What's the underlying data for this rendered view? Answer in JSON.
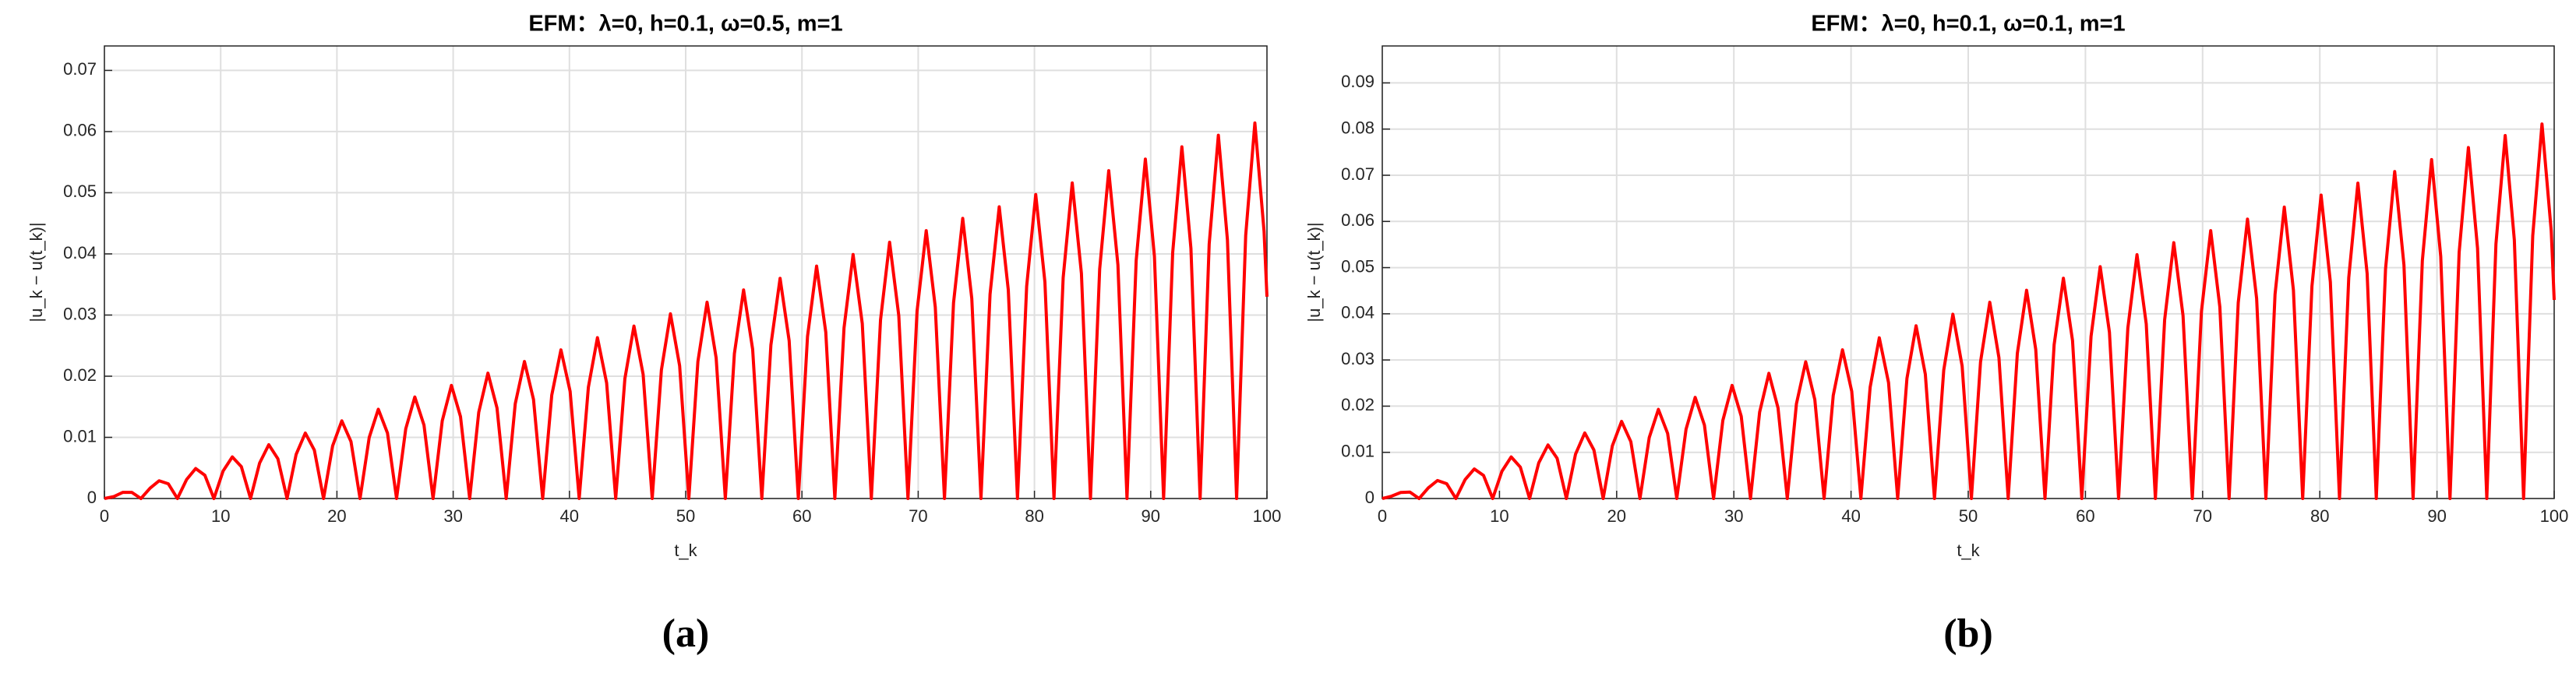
{
  "chart_data": [
    {
      "type": "line",
      "title": "EFM：λ=0, h=0.1, ω=0.5, m=1",
      "xlabel": "t_k",
      "ylabel": "|u_k − u(t_k)|",
      "caption": "(a)",
      "color": "#ff0000",
      "grid": true,
      "xlim": [
        0,
        100
      ],
      "ylim": [
        0,
        0.074
      ],
      "xticks": [
        0,
        10,
        20,
        30,
        40,
        50,
        60,
        70,
        80,
        90,
        100
      ],
      "yticks": [
        0,
        0.01,
        0.02,
        0.03,
        0.04,
        0.05,
        0.06,
        0.07
      ],
      "x": [
        0,
        0.79,
        1.57,
        2.36,
        3.14,
        3.93,
        4.71,
        5.5,
        6.28,
        7.07,
        7.85,
        8.64,
        9.42,
        10.21,
        11,
        11.78,
        12.57,
        13.35,
        14.14,
        14.92,
        15.71,
        16.49,
        17.28,
        18.06,
        18.85,
        19.63,
        20.42,
        21.21,
        21.99,
        22.78,
        23.56,
        24.35,
        25.13,
        25.92,
        26.7,
        27.49,
        28.27,
        29.06,
        29.85,
        30.63,
        31.42,
        32.2,
        32.99,
        33.77,
        34.56,
        35.34,
        36.13,
        36.91,
        37.7,
        38.48,
        39.27,
        40.06,
        40.84,
        41.63,
        42.41,
        43.2,
        43.98,
        44.77,
        45.55,
        46.34,
        47.12,
        47.91,
        48.69,
        49.48,
        50.27,
        51.05,
        51.84,
        52.62,
        53.41,
        54.19,
        54.98,
        55.76,
        56.55,
        57.33,
        58.12,
        58.9,
        59.69,
        60.48,
        61.26,
        62.05,
        62.83,
        63.62,
        64.4,
        65.19,
        65.97,
        66.76,
        67.54,
        68.33,
        69.12,
        69.9,
        70.69,
        71.47,
        72.26,
        73.04,
        73.83,
        74.61,
        75.4,
        76.18,
        76.97,
        77.75,
        78.54,
        79.33,
        80.11,
        80.9,
        81.68,
        82.47,
        83.25,
        84.04,
        84.82,
        85.61,
        86.39,
        87.18,
        87.96,
        88.75,
        89.54,
        90.32,
        91.11,
        91.89,
        92.68,
        93.46,
        94.25,
        95.03,
        95.82,
        96.6,
        97.39,
        98.17,
        98.96,
        99.75,
        100
      ],
      "values": [
        0,
        0.0003,
        0.001,
        0.001,
        0,
        0.0017,
        0.0029,
        0.0024,
        0,
        0.0031,
        0.0049,
        0.0038,
        0,
        0.0045,
        0.0068,
        0.0052,
        0,
        0.0058,
        0.0088,
        0.0065,
        0,
        0.0072,
        0.0107,
        0.0079,
        0,
        0.0086,
        0.0127,
        0.0093,
        0,
        0.01,
        0.0146,
        0.0107,
        0,
        0.0114,
        0.0166,
        0.012,
        0,
        0.0127,
        0.0185,
        0.0134,
        0,
        0.0141,
        0.0205,
        0.0148,
        0,
        0.0155,
        0.0224,
        0.0162,
        0,
        0.0169,
        0.0243,
        0.0175,
        0,
        0.0182,
        0.0263,
        0.0189,
        0,
        0.0196,
        0.0282,
        0.0203,
        0,
        0.021,
        0.0302,
        0.0217,
        0,
        0.0224,
        0.0321,
        0.023,
        0,
        0.0237,
        0.0341,
        0.0244,
        0,
        0.0251,
        0.036,
        0.0258,
        0,
        0.0265,
        0.038,
        0.0272,
        0,
        0.0279,
        0.0399,
        0.0286,
        0,
        0.0292,
        0.0419,
        0.0299,
        0,
        0.0306,
        0.0438,
        0.0313,
        0,
        0.032,
        0.0458,
        0.0327,
        0,
        0.0334,
        0.0477,
        0.0341,
        0,
        0.0347,
        0.0497,
        0.0354,
        0,
        0.0361,
        0.0516,
        0.0368,
        0,
        0.0375,
        0.0536,
        0.0382,
        0,
        0.0389,
        0.0555,
        0.0396,
        0,
        0.0402,
        0.0575,
        0.0409,
        0,
        0.0416,
        0.0594,
        0.0423,
        0,
        0.043,
        0.0614,
        0.0437,
        0.033
      ]
    },
    {
      "type": "line",
      "title": "EFM：λ=0, h=0.1, ω=0.1, m=1",
      "xlabel": "t_k",
      "ylabel": "|u_k − u(t_k)|",
      "caption": "(b)",
      "color": "#ff0000",
      "grid": true,
      "xlim": [
        0,
        100
      ],
      "ylim": [
        0,
        0.098
      ],
      "xticks": [
        0,
        10,
        20,
        30,
        40,
        50,
        60,
        70,
        80,
        90,
        100
      ],
      "yticks": [
        0,
        0.01,
        0.02,
        0.03,
        0.04,
        0.05,
        0.06,
        0.07,
        0.08,
        0.09
      ],
      "x": [
        0,
        0.79,
        1.57,
        2.36,
        3.14,
        3.93,
        4.71,
        5.5,
        6.28,
        7.07,
        7.85,
        8.64,
        9.42,
        10.21,
        11,
        11.78,
        12.57,
        13.35,
        14.14,
        14.92,
        15.71,
        16.49,
        17.28,
        18.06,
        18.85,
        19.63,
        20.42,
        21.21,
        21.99,
        22.78,
        23.56,
        24.35,
        25.13,
        25.92,
        26.7,
        27.49,
        28.27,
        29.06,
        29.85,
        30.63,
        31.42,
        32.2,
        32.99,
        33.77,
        34.56,
        35.34,
        36.13,
        36.91,
        37.7,
        38.48,
        39.27,
        40.06,
        40.84,
        41.63,
        42.41,
        43.2,
        43.98,
        44.77,
        45.55,
        46.34,
        47.12,
        47.91,
        48.69,
        49.48,
        50.27,
        51.05,
        51.84,
        52.62,
        53.41,
        54.19,
        54.98,
        55.76,
        56.55,
        57.33,
        58.12,
        58.9,
        59.69,
        60.48,
        61.26,
        62.05,
        62.83,
        63.62,
        64.4,
        65.19,
        65.97,
        66.76,
        67.54,
        68.33,
        69.12,
        69.9,
        70.69,
        71.47,
        72.26,
        73.04,
        73.83,
        74.61,
        75.4,
        76.18,
        76.97,
        77.75,
        78.54,
        79.33,
        80.11,
        80.9,
        81.68,
        82.47,
        83.25,
        84.04,
        84.82,
        85.61,
        86.39,
        87.18,
        87.96,
        88.75,
        89.54,
        90.32,
        91.11,
        91.89,
        92.68,
        93.46,
        94.25,
        95.03,
        95.82,
        96.6,
        97.39,
        98.17,
        98.96,
        99.75,
        100
      ],
      "values": [
        0,
        0.0005,
        0.0013,
        0.0014,
        0,
        0.0023,
        0.0039,
        0.0032,
        0,
        0.0041,
        0.0064,
        0.005,
        0,
        0.0059,
        0.009,
        0.0068,
        0,
        0.0077,
        0.0116,
        0.0087,
        0,
        0.0096,
        0.0142,
        0.0105,
        0,
        0.0114,
        0.0167,
        0.0123,
        0,
        0.0132,
        0.0193,
        0.0141,
        0,
        0.015,
        0.0219,
        0.0159,
        0,
        0.0169,
        0.0245,
        0.0178,
        0,
        0.0187,
        0.0271,
        0.0196,
        0,
        0.0205,
        0.0296,
        0.0214,
        0,
        0.0223,
        0.0322,
        0.0232,
        0,
        0.0241,
        0.0348,
        0.0251,
        0,
        0.026,
        0.0374,
        0.0269,
        0,
        0.0278,
        0.0399,
        0.0287,
        0,
        0.0296,
        0.0425,
        0.0305,
        0,
        0.0314,
        0.0451,
        0.0323,
        0,
        0.0333,
        0.0477,
        0.0342,
        0,
        0.0351,
        0.0502,
        0.036,
        0,
        0.0369,
        0.0528,
        0.0378,
        0,
        0.0387,
        0.0554,
        0.0396,
        0,
        0.0405,
        0.058,
        0.0415,
        0,
        0.0424,
        0.0605,
        0.0433,
        0,
        0.0442,
        0.0631,
        0.0451,
        0,
        0.046,
        0.0657,
        0.0469,
        0,
        0.0478,
        0.0683,
        0.0487,
        0,
        0.0497,
        0.0708,
        0.0506,
        0,
        0.0515,
        0.0734,
        0.0524,
        0,
        0.0533,
        0.076,
        0.0542,
        0,
        0.0551,
        0.0786,
        0.056,
        0,
        0.0569,
        0.0811,
        0.0579,
        0.043
      ]
    }
  ]
}
